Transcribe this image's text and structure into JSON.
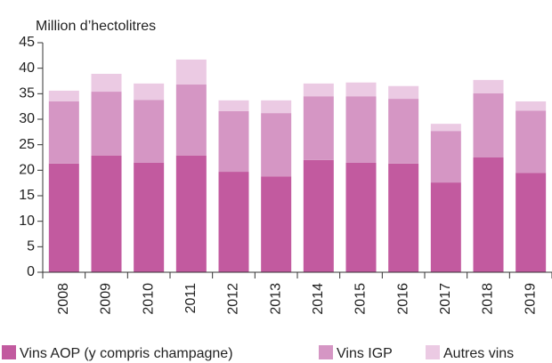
{
  "chart_data": {
    "type": "stacked_bar",
    "y_axis_label": "Million d’hectolitres",
    "categories": [
      "2008",
      "2009",
      "2010",
      "2011",
      "2012",
      "2013",
      "2014",
      "2015",
      "2016",
      "2017",
      "2018",
      "2019"
    ],
    "series": [
      {
        "name": "Vins AOP (y compris champagne)",
        "color": "#c25a9f",
        "values": [
          21.3,
          22.9,
          21.5,
          22.9,
          19.7,
          18.8,
          22.0,
          21.5,
          21.3,
          17.6,
          22.5,
          19.5
        ]
      },
      {
        "name": "Vins IGP",
        "color": "#d596c4",
        "values": [
          12.2,
          12.5,
          12.3,
          13.9,
          11.9,
          12.4,
          12.5,
          13.0,
          12.7,
          10.1,
          12.6,
          12.2
        ]
      },
      {
        "name": "Autres vins",
        "color": "#ebcae3",
        "values": [
          2.1,
          3.5,
          3.2,
          4.9,
          2.1,
          2.5,
          2.5,
          2.7,
          2.5,
          1.4,
          2.6,
          1.8
        ]
      }
    ],
    "ylim": [
      0,
      45
    ],
    "yticks": [
      0,
      5,
      10,
      15,
      20,
      25,
      30,
      35,
      40,
      45
    ],
    "legend": "bottom"
  }
}
